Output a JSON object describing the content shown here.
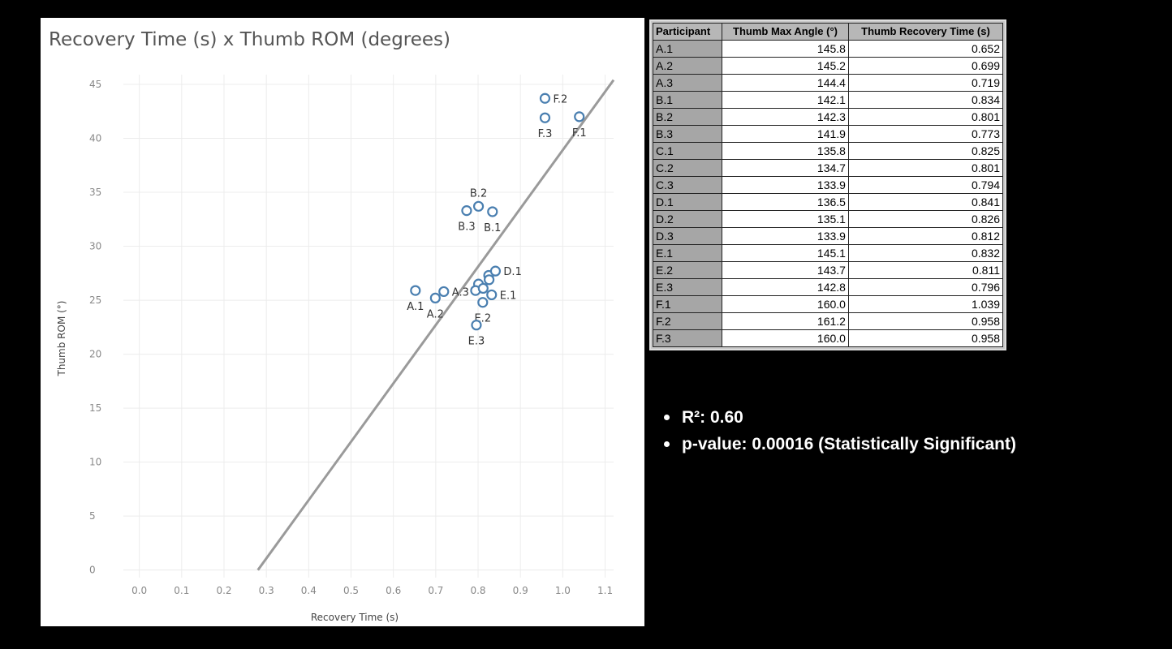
{
  "chart_data": {
    "type": "scatter",
    "title": "Recovery Time (s) x Thumb ROM (degrees)",
    "xlabel": "Recovery Time (s)",
    "ylabel": "Thumb ROM (°)",
    "xlim": [
      -0.03,
      1.12
    ],
    "ylim": [
      -0.7,
      45.9
    ],
    "x_ticks": [
      "0.0",
      "0.1",
      "0.2",
      "0.3",
      "0.4",
      "0.5",
      "0.6",
      "0.7",
      "0.8",
      "0.9",
      "1.0",
      "1.1"
    ],
    "y_ticks": [
      "45",
      "40",
      "35",
      "30",
      "25",
      "20",
      "15",
      "10",
      "5",
      "0"
    ],
    "grid": true,
    "legend": "none",
    "marker": "open-circle",
    "color": "#4a7fb0",
    "trendline": {
      "color": "#9a9a9a",
      "x1": 0.28,
      "y1": 0.0,
      "x2": 1.12,
      "y2": 45.4
    },
    "points": [
      {
        "label": "A.1",
        "x": 0.652,
        "y": 25.9,
        "label_pos": "below"
      },
      {
        "label": "A.2",
        "x": 0.699,
        "y": 25.2,
        "label_pos": "below"
      },
      {
        "label": "A.3",
        "x": 0.719,
        "y": 25.8,
        "label_pos": "right"
      },
      {
        "label": "B.1",
        "x": 0.834,
        "y": 33.2,
        "label_pos": "below"
      },
      {
        "label": "B.2",
        "x": 0.801,
        "y": 33.7,
        "label_pos": "above"
      },
      {
        "label": "B.3",
        "x": 0.773,
        "y": 33.3,
        "label_pos": "below"
      },
      {
        "label": "",
        "x": 0.825,
        "y": 27.3
      },
      {
        "label": "",
        "x": 0.801,
        "y": 26.5
      },
      {
        "label": "",
        "x": 0.794,
        "y": 25.9
      },
      {
        "label": "D.1",
        "x": 0.841,
        "y": 27.7,
        "label_pos": "right"
      },
      {
        "label": "",
        "x": 0.826,
        "y": 26.9
      },
      {
        "label": "",
        "x": 0.812,
        "y": 26.1
      },
      {
        "label": "E.1",
        "x": 0.832,
        "y": 25.5,
        "label_pos": "right"
      },
      {
        "label": "E.2",
        "x": 0.811,
        "y": 24.8,
        "label_pos": "below"
      },
      {
        "label": "E.3",
        "x": 0.796,
        "y": 22.7,
        "label_pos": "below"
      },
      {
        "label": "F.1",
        "x": 1.039,
        "y": 42.0,
        "label_pos": "below"
      },
      {
        "label": "F.2",
        "x": 0.958,
        "y": 43.7,
        "label_pos": "right"
      },
      {
        "label": "F.3",
        "x": 0.958,
        "y": 41.9,
        "label_pos": "below"
      }
    ]
  },
  "table": {
    "headers": [
      "Participant",
      "Thumb Max Angle (°)",
      "Thumb Recovery Time (s)"
    ],
    "rows": [
      [
        "A.1",
        "145.8",
        "0.652"
      ],
      [
        "A.2",
        "145.2",
        "0.699"
      ],
      [
        "A.3",
        "144.4",
        "0.719"
      ],
      [
        "B.1",
        "142.1",
        "0.834"
      ],
      [
        "B.2",
        "142.3",
        "0.801"
      ],
      [
        "B.3",
        "141.9",
        "0.773"
      ],
      [
        "C.1",
        "135.8",
        "0.825"
      ],
      [
        "C.2",
        "134.7",
        "0.801"
      ],
      [
        "C.3",
        "133.9",
        "0.794"
      ],
      [
        "D.1",
        "136.5",
        "0.841"
      ],
      [
        "D.2",
        "135.1",
        "0.826"
      ],
      [
        "D.3",
        "133.9",
        "0.812"
      ],
      [
        "E.1",
        "145.1",
        "0.832"
      ],
      [
        "E.2",
        "143.7",
        "0.811"
      ],
      [
        "E.3",
        "142.8",
        "0.796"
      ],
      [
        "F.1",
        "160.0",
        "1.039"
      ],
      [
        "F.2",
        "161.2",
        "0.958"
      ],
      [
        "F.3",
        "160.0",
        "0.958"
      ]
    ]
  },
  "stats": {
    "r2": "R²: 0.60",
    "p_value": "p-value: 0.00016 (Statistically Significant)"
  }
}
